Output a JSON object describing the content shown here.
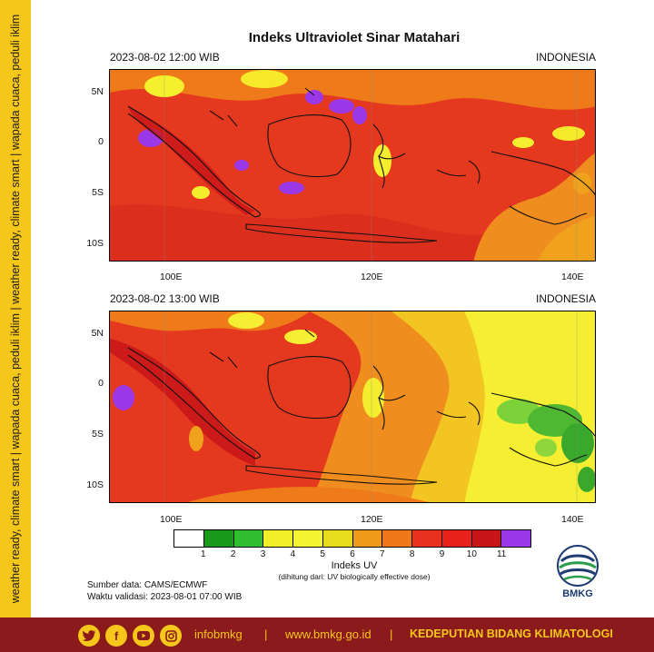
{
  "side_text": "weather ready, climate smart  |  wapada cuaca, peduli iklim  |  weather ready, climate smart  |  wapada cuaca, peduli iklim",
  "title": "Indeks Ultraviolet Sinar Matahari",
  "panels": [
    {
      "datetime": "2023-08-02  12:00 WIB",
      "region": "INDONESIA"
    },
    {
      "datetime": "2023-08-02  13:00 WIB",
      "region": "INDONESIA"
    }
  ],
  "lat_labels": [
    "5N",
    "0",
    "5S",
    "10S"
  ],
  "lon_labels": [
    "100E",
    "120E",
    "140E"
  ],
  "colorbar": {
    "title": "Indeks UV",
    "note": "(dihitung dari: UV biologically effective dose)",
    "labels": [
      "1",
      "2",
      "3",
      "4",
      "5",
      "6",
      "7",
      "8",
      "9",
      "10",
      "11"
    ],
    "colors": [
      "#ffffff",
      "#1a9a1a",
      "#2fbf2f",
      "#f0ef2a",
      "#f5f531",
      "#e8dc1e",
      "#f09a1c",
      "#f07819",
      "#e8321e",
      "#e8211c",
      "#c8151a",
      "#9b38e8"
    ]
  },
  "source": {
    "line1": "Sumber data: CAMS/ECMWF",
    "line2": "Waktu validasi: 2023-08-01 07:00 WIB"
  },
  "logo_text": "BMKG",
  "footer": {
    "social_icons": [
      "twitter-icon",
      "facebook-icon",
      "youtube-icon",
      "instagram-icon"
    ],
    "handle": "infobmkg",
    "sep1": "|",
    "website": "www.bmkg.go.id",
    "sep2": "|",
    "department": "KEDEPUTIAN BIDANG KLIMATOLOGI"
  },
  "colors": {
    "band_yellow": "#f5c71a",
    "footer_red": "#8b1a1d"
  }
}
